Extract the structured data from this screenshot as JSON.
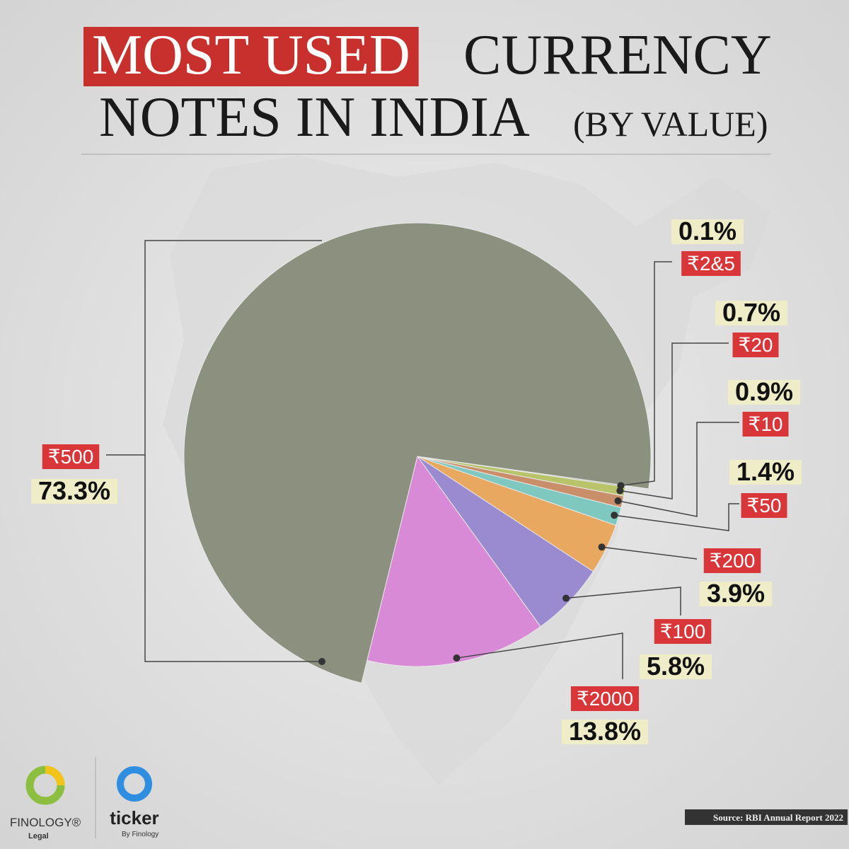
{
  "chart_data": {
    "type": "pie",
    "title_highlight": "MOST USED",
    "title_lines": [
      "CURRENCY",
      "NOTES IN INDIA"
    ],
    "subtitle": "(BY VALUE)",
    "categories": [
      "₹2&5",
      "₹20",
      "₹10",
      "₹50",
      "₹200",
      "₹100",
      "₹2000",
      "₹500"
    ],
    "values": [
      0.1,
      0.7,
      0.9,
      1.4,
      3.9,
      5.8,
      13.8,
      73.3
    ],
    "value_labels": [
      "0.1%",
      "0.7%",
      "0.9%",
      "1.4%",
      "3.9%",
      "5.8%",
      "13.8%",
      "73.3%"
    ],
    "colors": [
      "#9fb08e",
      "#b9c46a",
      "#c98f6a",
      "#7ec8c0",
      "#e8a860",
      "#9a8bd0",
      "#d98ad6",
      "#8c917f"
    ],
    "source": "Source: RBI Annual Report 2022"
  },
  "branding": {
    "finology": "FINOLOGY®",
    "finology_sub": "Legal",
    "ticker": "ticker",
    "ticker_sub": "By Finology"
  }
}
